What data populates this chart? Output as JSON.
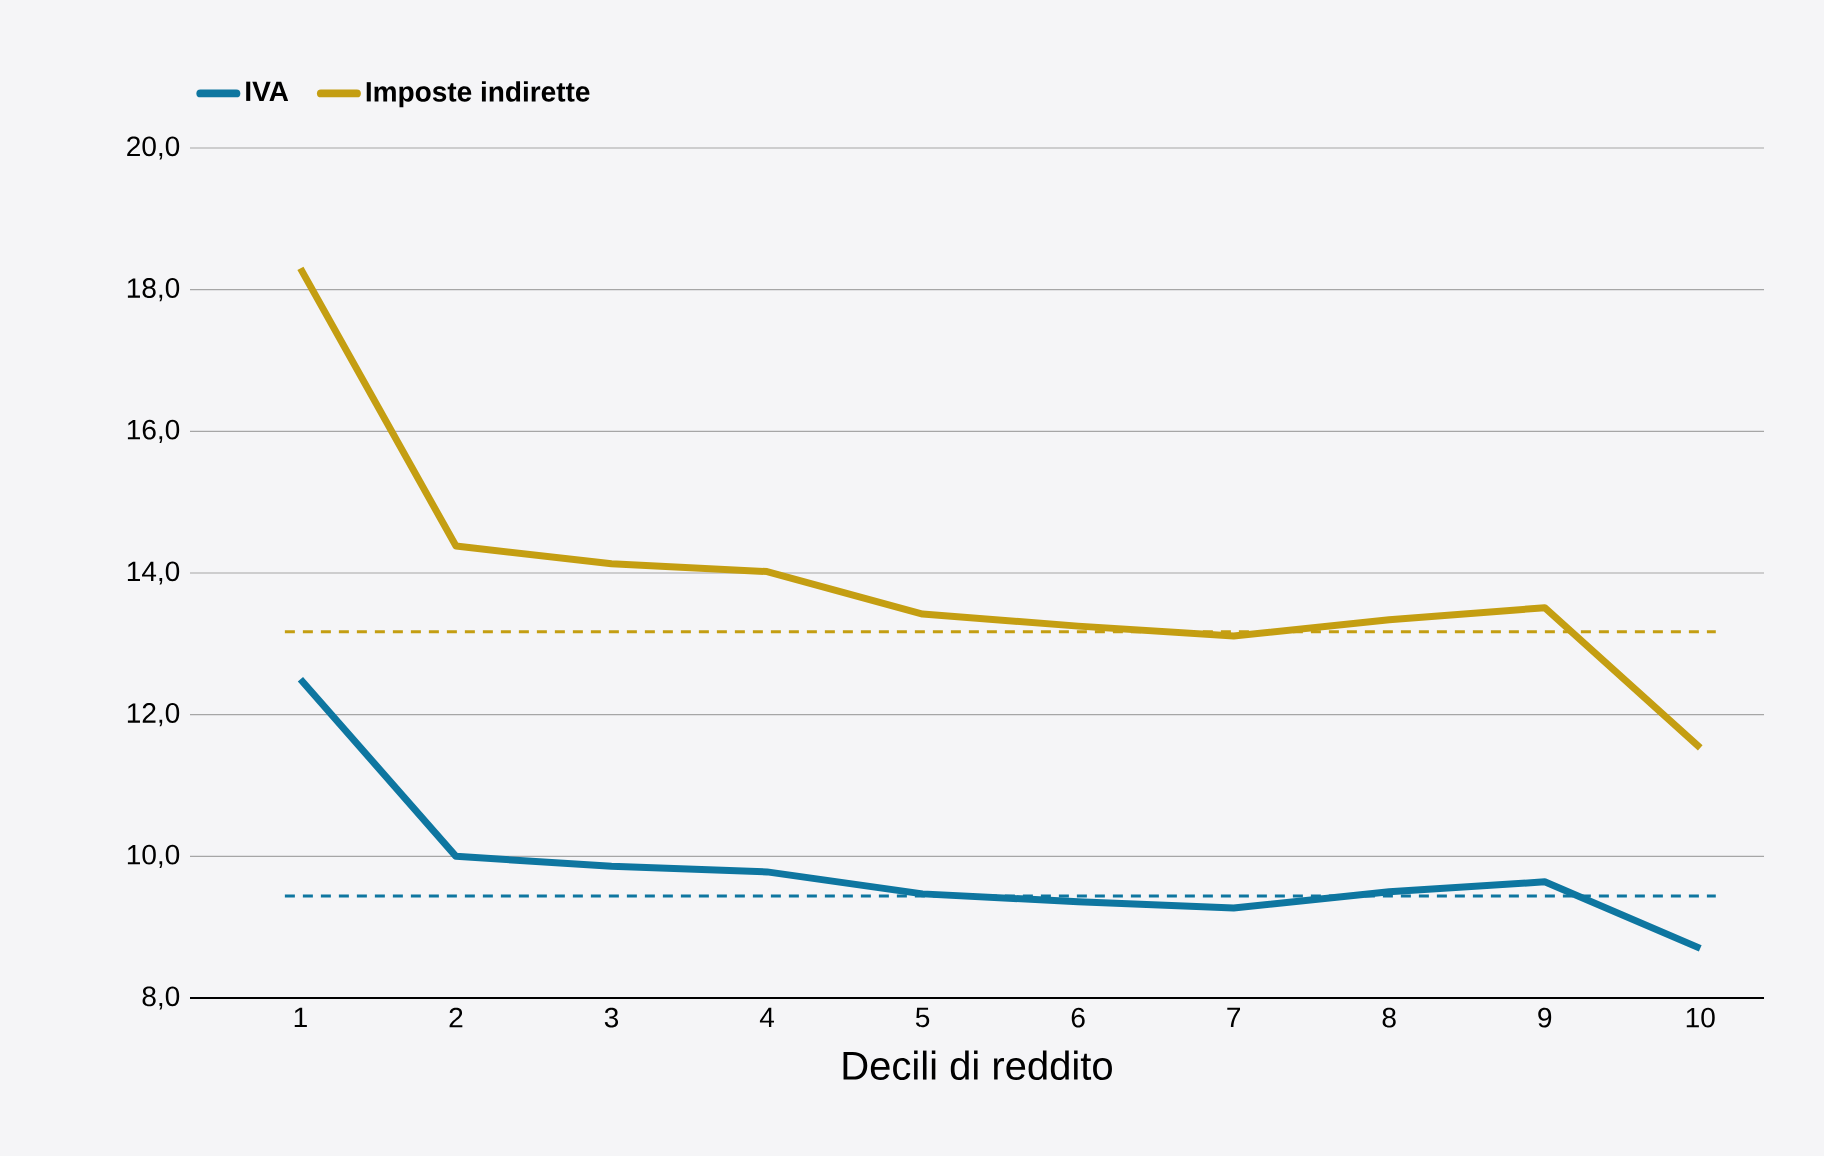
{
  "chart_data": {
    "type": "line",
    "xlabel": "Decili di reddito",
    "categories": [
      "1",
      "2",
      "3",
      "4",
      "5",
      "6",
      "7",
      "8",
      "9",
      "10"
    ],
    "series": [
      {
        "name": "IVA",
        "color": "#0e76a0",
        "values": [
          12.5,
          10.0,
          9.86,
          9.78,
          9.47,
          9.36,
          9.27,
          9.5,
          9.64,
          8.7
        ]
      },
      {
        "name": "Imposte indirette",
        "color": "#c49e12",
        "values": [
          18.3,
          14.38,
          14.13,
          14.02,
          13.42,
          13.25,
          13.11,
          13.34,
          13.51,
          11.53
        ]
      }
    ],
    "ref_lines": [
      {
        "axis": "y",
        "value": 9.44,
        "color": "#0e76a0",
        "line_style": "dashed"
      },
      {
        "axis": "y",
        "value": 13.17,
        "color": "#c49e12",
        "line_style": "dashed"
      }
    ],
    "ylim": [
      8,
      20
    ],
    "yticks": [
      {
        "value": 8,
        "label": "8,0"
      },
      {
        "value": 10,
        "label": "10,0"
      },
      {
        "value": 12,
        "label": "12,0"
      },
      {
        "value": 14,
        "label": "14,0"
      },
      {
        "value": 16,
        "label": "16,0"
      },
      {
        "value": 18,
        "label": "18,0"
      },
      {
        "value": 20,
        "label": "20,0"
      }
    ],
    "grid": "y",
    "legend": "top left",
    "marker": "none",
    "line_style": "solid"
  }
}
